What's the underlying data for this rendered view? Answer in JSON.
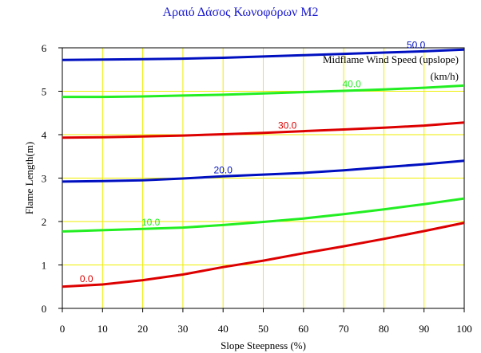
{
  "chart_data": {
    "type": "line",
    "title": "Αραιό Δάσος Κωνοφόρων M2",
    "xlabel": "Slope Steepness (%)",
    "ylabel": "Flame Length(m)",
    "xlim": [
      0,
      100
    ],
    "ylim": [
      0,
      6
    ],
    "x_ticks": [
      0,
      10,
      20,
      30,
      40,
      50,
      60,
      70,
      80,
      90,
      100
    ],
    "y_ticks": [
      0,
      1,
      2,
      3,
      4,
      5,
      6
    ],
    "grid": true,
    "legend_title_lines": [
      "Midflame Wind Speed (upslope)",
      "(km/h)"
    ],
    "legend_placement": "top-right",
    "x": [
      0,
      10,
      20,
      30,
      40,
      50,
      60,
      70,
      80,
      90,
      100
    ],
    "series": [
      {
        "name": "0.0",
        "color": "#dd0000",
        "values": [
          0.5,
          0.55,
          0.65,
          0.78,
          0.95,
          1.1,
          1.27,
          1.43,
          1.6,
          1.78,
          1.97
        ]
      },
      {
        "name": "10.0",
        "color": "#22ee22",
        "values": [
          1.77,
          1.8,
          1.83,
          1.86,
          1.92,
          1.99,
          2.07,
          2.17,
          2.28,
          2.4,
          2.53
        ]
      },
      {
        "name": "20.0",
        "color": "#0010c0",
        "values": [
          2.92,
          2.93,
          2.95,
          2.99,
          3.04,
          3.08,
          3.12,
          3.18,
          3.25,
          3.32,
          3.4
        ]
      },
      {
        "name": "30.0",
        "color": "#dd0000",
        "values": [
          3.93,
          3.94,
          3.96,
          3.98,
          4.01,
          4.04,
          4.08,
          4.12,
          4.16,
          4.21,
          4.28
        ]
      },
      {
        "name": "40.0",
        "color": "#22ee22",
        "values": [
          4.87,
          4.87,
          4.88,
          4.9,
          4.92,
          4.95,
          4.98,
          5.01,
          5.04,
          5.08,
          5.13
        ]
      },
      {
        "name": "50.0",
        "color": "#0010c0",
        "values": [
          5.72,
          5.73,
          5.74,
          5.75,
          5.77,
          5.8,
          5.83,
          5.86,
          5.89,
          5.92,
          5.96
        ]
      }
    ],
    "series_label_x": [
      6,
      22,
      40,
      56,
      72,
      88
    ]
  }
}
